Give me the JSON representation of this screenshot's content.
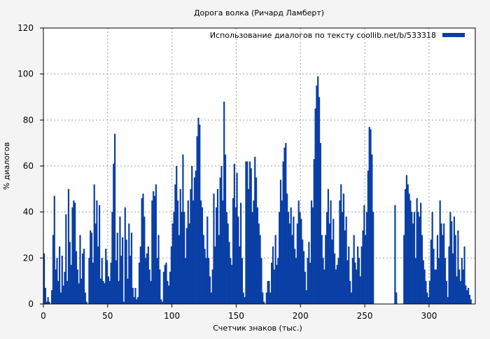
{
  "chart_data": {
    "type": "bar",
    "title": "Дорога волка (Ричард Ламберт)",
    "xlabel": "Счетчик знаков (тыс.)",
    "ylabel": "% диалогов",
    "xlim": [
      0,
      336
    ],
    "ylim": [
      0,
      120
    ],
    "xticks": [
      0,
      50,
      100,
      150,
      200,
      250,
      300
    ],
    "yticks": [
      0,
      20,
      40,
      60,
      80,
      100,
      120
    ],
    "grid": true,
    "legend_position": "top-right",
    "series": [
      {
        "name": "Использование диалогов по тексту  coollib.net/b/533318",
        "color": "#0a3fa6",
        "points": [
          [
            0,
            22
          ],
          [
            1,
            7
          ],
          [
            2,
            1
          ],
          [
            3,
            3
          ],
          [
            4,
            1
          ],
          [
            5,
            0
          ],
          [
            6,
            6
          ],
          [
            7,
            30
          ],
          [
            8,
            47
          ],
          [
            9,
            15
          ],
          [
            10,
            20
          ],
          [
            11,
            10
          ],
          [
            12,
            25
          ],
          [
            13,
            5
          ],
          [
            14,
            21
          ],
          [
            15,
            8
          ],
          [
            16,
            14
          ],
          [
            17,
            39
          ],
          [
            18,
            10
          ],
          [
            19,
            50
          ],
          [
            20,
            27
          ],
          [
            21,
            17
          ],
          [
            22,
            42
          ],
          [
            23,
            45
          ],
          [
            24,
            44
          ],
          [
            25,
            23
          ],
          [
            26,
            15
          ],
          [
            27,
            9
          ],
          [
            28,
            30
          ],
          [
            29,
            11
          ],
          [
            30,
            22
          ],
          [
            31,
            24
          ],
          [
            32,
            5
          ],
          [
            33,
            1
          ],
          [
            34,
            0
          ],
          [
            35,
            20
          ],
          [
            36,
            32
          ],
          [
            37,
            31
          ],
          [
            38,
            18
          ],
          [
            39,
            52
          ],
          [
            40,
            35
          ],
          [
            41,
            45
          ],
          [
            42,
            25
          ],
          [
            43,
            43
          ],
          [
            44,
            11
          ],
          [
            45,
            20
          ],
          [
            46,
            10
          ],
          [
            47,
            9
          ],
          [
            48,
            24
          ],
          [
            49,
            19
          ],
          [
            50,
            12
          ],
          [
            51,
            10
          ],
          [
            52,
            18
          ],
          [
            53,
            40
          ],
          [
            54,
            61
          ],
          [
            55,
            74
          ],
          [
            56,
            19
          ],
          [
            57,
            31
          ],
          [
            58,
            10
          ],
          [
            59,
            38
          ],
          [
            60,
            21
          ],
          [
            61,
            29
          ],
          [
            62,
            1
          ],
          [
            63,
            42
          ],
          [
            64,
            28
          ],
          [
            65,
            11
          ],
          [
            66,
            35
          ],
          [
            67,
            21
          ],
          [
            68,
            31
          ],
          [
            69,
            7
          ],
          [
            70,
            3
          ],
          [
            71,
            7
          ],
          [
            72,
            2
          ],
          [
            73,
            3
          ],
          [
            74,
            18
          ],
          [
            75,
            25
          ],
          [
            76,
            46
          ],
          [
            77,
            48
          ],
          [
            78,
            38
          ],
          [
            79,
            20
          ],
          [
            80,
            22
          ],
          [
            81,
            25
          ],
          [
            82,
            15
          ],
          [
            83,
            10
          ],
          [
            84,
            45
          ],
          [
            85,
            49
          ],
          [
            86,
            47
          ],
          [
            87,
            52
          ],
          [
            88,
            20
          ],
          [
            89,
            30
          ],
          [
            90,
            15
          ],
          [
            91,
            2
          ],
          [
            92,
            1
          ],
          [
            93,
            14
          ],
          [
            94,
            17
          ],
          [
            95,
            18
          ],
          [
            96,
            10
          ],
          [
            97,
            8
          ],
          [
            98,
            14
          ],
          [
            99,
            25
          ],
          [
            100,
            35
          ],
          [
            101,
            40
          ],
          [
            102,
            52
          ],
          [
            103,
            60
          ],
          [
            104,
            45
          ],
          [
            105,
            30
          ],
          [
            106,
            50
          ],
          [
            107,
            40
          ],
          [
            108,
            65
          ],
          [
            109,
            40
          ],
          [
            110,
            20
          ],
          [
            111,
            33
          ],
          [
            112,
            45
          ],
          [
            113,
            35
          ],
          [
            114,
            50
          ],
          [
            115,
            60
          ],
          [
            116,
            45
          ],
          [
            117,
            55
          ],
          [
            118,
            58
          ],
          [
            119,
            73
          ],
          [
            120,
            81
          ],
          [
            121,
            78
          ],
          [
            122,
            45
          ],
          [
            123,
            42
          ],
          [
            124,
            30
          ],
          [
            125,
            24
          ],
          [
            126,
            20
          ],
          [
            127,
            38
          ],
          [
            128,
            20
          ],
          [
            129,
            12
          ],
          [
            130,
            5
          ],
          [
            131,
            15
          ],
          [
            132,
            48
          ],
          [
            133,
            25
          ],
          [
            134,
            42
          ],
          [
            135,
            50
          ],
          [
            136,
            30
          ],
          [
            137,
            55
          ],
          [
            138,
            60
          ],
          [
            139,
            45
          ],
          [
            140,
            88
          ],
          [
            141,
            65
          ],
          [
            142,
            40
          ],
          [
            143,
            35
          ],
          [
            144,
            27
          ],
          [
            145,
            20
          ],
          [
            146,
            17
          ],
          [
            147,
            46
          ],
          [
            148,
            61
          ],
          [
            149,
            42
          ],
          [
            150,
            57
          ],
          [
            151,
            38
          ],
          [
            152,
            25
          ],
          [
            153,
            44
          ],
          [
            154,
            20
          ],
          [
            155,
            5
          ],
          [
            156,
            3
          ],
          [
            157,
            62
          ],
          [
            158,
            62
          ],
          [
            159,
            50
          ],
          [
            160,
            62
          ],
          [
            161,
            59
          ],
          [
            162,
            40
          ],
          [
            163,
            45
          ],
          [
            164,
            64
          ],
          [
            165,
            55
          ],
          [
            166,
            42
          ],
          [
            167,
            35
          ],
          [
            168,
            30
          ],
          [
            169,
            20
          ],
          [
            170,
            5
          ],
          [
            171,
            1
          ],
          [
            172,
            0
          ],
          [
            173,
            5
          ],
          [
            174,
            10
          ],
          [
            175,
            10
          ],
          [
            176,
            5
          ],
          [
            177,
            18
          ],
          [
            178,
            25
          ],
          [
            179,
            15
          ],
          [
            180,
            30
          ],
          [
            181,
            17
          ],
          [
            182,
            20
          ],
          [
            183,
            40
          ],
          [
            184,
            54
          ],
          [
            185,
            45
          ],
          [
            186,
            62
          ],
          [
            187,
            68
          ],
          [
            188,
            70
          ],
          [
            189,
            48
          ],
          [
            190,
            40
          ],
          [
            191,
            35
          ],
          [
            192,
            42
          ],
          [
            193,
            30
          ],
          [
            194,
            38
          ],
          [
            195,
            24
          ],
          [
            196,
            20
          ],
          [
            197,
            35
          ],
          [
            198,
            45
          ],
          [
            199,
            40
          ],
          [
            200,
            37
          ],
          [
            201,
            28
          ],
          [
            202,
            23
          ],
          [
            203,
            14
          ],
          [
            204,
            6
          ],
          [
            205,
            20
          ],
          [
            206,
            27
          ],
          [
            207,
            18
          ],
          [
            208,
            45
          ],
          [
            209,
            42
          ],
          [
            210,
            63
          ],
          [
            211,
            85
          ],
          [
            212,
            95
          ],
          [
            213,
            99
          ],
          [
            214,
            90
          ],
          [
            215,
            70
          ],
          [
            216,
            30
          ],
          [
            217,
            20
          ],
          [
            218,
            15
          ],
          [
            219,
            30
          ],
          [
            220,
            40
          ],
          [
            221,
            50
          ],
          [
            222,
            35
          ],
          [
            223,
            45
          ],
          [
            224,
            28
          ],
          [
            225,
            37
          ],
          [
            226,
            22
          ],
          [
            227,
            15
          ],
          [
            228,
            17
          ],
          [
            229,
            20
          ],
          [
            230,
            45
          ],
          [
            231,
            52
          ],
          [
            232,
            40
          ],
          [
            233,
            48
          ],
          [
            234,
            32
          ],
          [
            235,
            38
          ],
          [
            236,
            19
          ],
          [
            237,
            25
          ],
          [
            238,
            10
          ],
          [
            239,
            5
          ],
          [
            240,
            20
          ],
          [
            241,
            30
          ],
          [
            242,
            18
          ],
          [
            243,
            15
          ],
          [
            244,
            25
          ],
          [
            245,
            20
          ],
          [
            246,
            12
          ],
          [
            247,
            25
          ],
          [
            248,
            32
          ],
          [
            249,
            43
          ],
          [
            250,
            30
          ],
          [
            251,
            40
          ],
          [
            252,
            58
          ],
          [
            253,
            77
          ],
          [
            254,
            76
          ],
          [
            255,
            65
          ],
          [
            256,
            40
          ],
          [
            257,
            0
          ],
          [
            258,
            0
          ],
          [
            259,
            0
          ],
          [
            260,
            0
          ],
          [
            261,
            0
          ],
          [
            262,
            0
          ],
          [
            263,
            0
          ],
          [
            264,
            0
          ],
          [
            265,
            0
          ],
          [
            266,
            0
          ],
          [
            267,
            0
          ],
          [
            268,
            0
          ],
          [
            269,
            0
          ],
          [
            270,
            0
          ],
          [
            271,
            0
          ],
          [
            272,
            0
          ],
          [
            273,
            43
          ],
          [
            274,
            5
          ],
          [
            275,
            0
          ],
          [
            276,
            0
          ],
          [
            277,
            0
          ],
          [
            278,
            0
          ],
          [
            279,
            0
          ],
          [
            280,
            30
          ],
          [
            281,
            50
          ],
          [
            282,
            56
          ],
          [
            283,
            52
          ],
          [
            284,
            48
          ],
          [
            285,
            45
          ],
          [
            286,
            40
          ],
          [
            287,
            35
          ],
          [
            288,
            40
          ],
          [
            289,
            20
          ],
          [
            290,
            46
          ],
          [
            291,
            40
          ],
          [
            292,
            38
          ],
          [
            293,
            44
          ],
          [
            294,
            30
          ],
          [
            295,
            19
          ],
          [
            296,
            15
          ],
          [
            297,
            10
          ],
          [
            298,
            5
          ],
          [
            299,
            3
          ],
          [
            300,
            10
          ],
          [
            301,
            28
          ],
          [
            302,
            40
          ],
          [
            303,
            24
          ],
          [
            304,
            15
          ],
          [
            305,
            15
          ],
          [
            306,
            30
          ],
          [
            307,
            20
          ],
          [
            308,
            45
          ],
          [
            309,
            35
          ],
          [
            310,
            30
          ],
          [
            311,
            35
          ],
          [
            312,
            20
          ],
          [
            313,
            10
          ],
          [
            314,
            3
          ],
          [
            315,
            25
          ],
          [
            316,
            40
          ],
          [
            317,
            36
          ],
          [
            318,
            22
          ],
          [
            319,
            38
          ],
          [
            320,
            30
          ],
          [
            321,
            12
          ],
          [
            322,
            32
          ],
          [
            323,
            15
          ],
          [
            324,
            10
          ],
          [
            325,
            20
          ],
          [
            326,
            15
          ],
          [
            327,
            25
          ],
          [
            328,
            8
          ],
          [
            329,
            6
          ],
          [
            330,
            7
          ],
          [
            331,
            4
          ],
          [
            332,
            2
          ]
        ]
      }
    ]
  }
}
